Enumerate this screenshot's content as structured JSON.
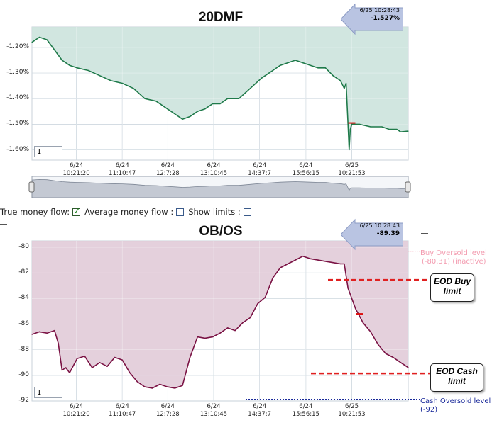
{
  "colors": {
    "top_fill": "#cde4dd",
    "top_line": "#1f7a4a",
    "bottom_fill": "#e2ccd9",
    "bottom_line": "#7a1244",
    "grid": "#aabbc8",
    "eod_line": "#e02020",
    "buy_level": "#f6a0b0",
    "cash_level": "#1a2a9a"
  },
  "top_chart": {
    "title": "20DMF",
    "zoom_value": "1",
    "callout": {
      "time": "6/25 10:28:43",
      "value": "-1.527%"
    }
  },
  "bottom_chart": {
    "title": "OB/OS",
    "zoom_value": "1",
    "callout": {
      "time": "6/25 10:28:43",
      "value": "-89.39"
    },
    "buy_level_label": [
      "Buy Oversold level",
      "(-80.31) (inactive)"
    ],
    "cash_level_label": [
      "Cash Oversold level",
      "(-92)"
    ],
    "annotations": {
      "eod_buy": [
        "EOD Buy",
        "limit"
      ],
      "eod_cash": [
        "EOD Cash",
        "limit"
      ]
    }
  },
  "toggles": {
    "true_money_flow": "True money flow:",
    "average_money_flow": "Average money flow :",
    "show_limits": "Show limits :"
  },
  "chart_data": [
    {
      "type": "area",
      "title": "20DMF",
      "ylim": [
        -1.64,
        -1.12
      ],
      "y_ticks": [
        "-1.20%",
        "-1.30%",
        "-1.40%",
        "-1.50%",
        "-1.60%"
      ],
      "y_tick_values": [
        -1.2,
        -1.3,
        -1.4,
        -1.5,
        -1.6
      ],
      "x_ticks": [
        [
          "6/24",
          "10:21:20"
        ],
        [
          "6/24",
          "11:10:47"
        ],
        [
          "6/24",
          "12:7:28"
        ],
        [
          "6/24",
          "13:10:45"
        ],
        [
          "6/24",
          "14:37:7"
        ],
        [
          "6/24",
          "15:56:15"
        ],
        [
          "6/25",
          "10:21:53"
        ]
      ],
      "x_range": [
        0,
        1
      ],
      "x_tick_positions": [
        0.118,
        0.24,
        0.361,
        0.483,
        0.605,
        0.728,
        0.85
      ],
      "grid": true,
      "series": [
        {
          "values": [
            [
              0.0,
              -1.18
            ],
            [
              0.02,
              -1.16
            ],
            [
              0.04,
              -1.17
            ],
            [
              0.06,
              -1.21
            ],
            [
              0.08,
              -1.25
            ],
            [
              0.1,
              -1.27
            ],
            [
              0.12,
              -1.28
            ],
            [
              0.15,
              -1.29
            ],
            [
              0.18,
              -1.31
            ],
            [
              0.21,
              -1.33
            ],
            [
              0.24,
              -1.34
            ],
            [
              0.27,
              -1.36
            ],
            [
              0.3,
              -1.4
            ],
            [
              0.33,
              -1.41
            ],
            [
              0.36,
              -1.44
            ],
            [
              0.38,
              -1.46
            ],
            [
              0.4,
              -1.48
            ],
            [
              0.42,
              -1.47
            ],
            [
              0.44,
              -1.45
            ],
            [
              0.46,
              -1.44
            ],
            [
              0.48,
              -1.42
            ],
            [
              0.5,
              -1.42
            ],
            [
              0.52,
              -1.4
            ],
            [
              0.55,
              -1.4
            ],
            [
              0.58,
              -1.36
            ],
            [
              0.61,
              -1.32
            ],
            [
              0.64,
              -1.29
            ],
            [
              0.66,
              -1.27
            ],
            [
              0.68,
              -1.26
            ],
            [
              0.7,
              -1.25
            ],
            [
              0.72,
              -1.26
            ],
            [
              0.74,
              -1.27
            ],
            [
              0.76,
              -1.28
            ],
            [
              0.78,
              -1.28
            ],
            [
              0.8,
              -1.31
            ],
            [
              0.82,
              -1.33
            ],
            [
              0.83,
              -1.36
            ],
            [
              0.835,
              -1.34
            ],
            [
              0.84,
              -1.5
            ],
            [
              0.843,
              -1.6
            ],
            [
              0.846,
              -1.52
            ],
            [
              0.85,
              -1.5
            ],
            [
              0.87,
              -1.5
            ],
            [
              0.9,
              -1.51
            ],
            [
              0.93,
              -1.51
            ],
            [
              0.95,
              -1.52
            ],
            [
              0.97,
              -1.52
            ],
            [
              0.98,
              -1.53
            ],
            [
              1.0,
              -1.527
            ]
          ]
        }
      ],
      "marker": [
        0.85,
        -1.495
      ]
    },
    {
      "type": "area",
      "title": "OB/OS",
      "ylim": [
        -92,
        -79.5
      ],
      "y_ticks": [
        "-80",
        "-82",
        "-84",
        "-86",
        "-88",
        "-90",
        "-92"
      ],
      "y_tick_values": [
        -80,
        -82,
        -84,
        -86,
        -88,
        -90,
        -92
      ],
      "x_ticks": [
        [
          "6/24",
          "10:21:20"
        ],
        [
          "6/24",
          "11:10:47"
        ],
        [
          "6/24",
          "12:7:28"
        ],
        [
          "6/24",
          "13:10:45"
        ],
        [
          "6/24",
          "14:37:7"
        ],
        [
          "6/24",
          "15:56:15"
        ],
        [
          "6/25",
          "10:21:53"
        ]
      ],
      "x_range": [
        0,
        1
      ],
      "x_tick_positions": [
        0.118,
        0.24,
        0.361,
        0.483,
        0.605,
        0.728,
        0.85
      ],
      "grid": true,
      "series": [
        {
          "values": [
            [
              0.0,
              -86.8
            ],
            [
              0.02,
              -86.6
            ],
            [
              0.04,
              -86.7
            ],
            [
              0.06,
              -86.5
            ],
            [
              0.07,
              -87.5
            ],
            [
              0.08,
              -89.6
            ],
            [
              0.09,
              -89.4
            ],
            [
              0.1,
              -89.8
            ],
            [
              0.12,
              -88.7
            ],
            [
              0.14,
              -88.5
            ],
            [
              0.16,
              -89.4
            ],
            [
              0.18,
              -89.0
            ],
            [
              0.2,
              -89.3
            ],
            [
              0.22,
              -88.6
            ],
            [
              0.24,
              -88.8
            ],
            [
              0.26,
              -89.8
            ],
            [
              0.28,
              -90.5
            ],
            [
              0.3,
              -90.9
            ],
            [
              0.32,
              -91.0
            ],
            [
              0.34,
              -90.7
            ],
            [
              0.36,
              -90.9
            ],
            [
              0.38,
              -91.0
            ],
            [
              0.4,
              -90.8
            ],
            [
              0.42,
              -88.6
            ],
            [
              0.44,
              -87.0
            ],
            [
              0.46,
              -87.1
            ],
            [
              0.48,
              -87.0
            ],
            [
              0.5,
              -86.7
            ],
            [
              0.52,
              -86.3
            ],
            [
              0.54,
              -86.5
            ],
            [
              0.56,
              -85.9
            ],
            [
              0.58,
              -85.5
            ],
            [
              0.6,
              -84.4
            ],
            [
              0.62,
              -83.9
            ],
            [
              0.64,
              -82.4
            ],
            [
              0.66,
              -81.6
            ],
            [
              0.68,
              -81.3
            ],
            [
              0.7,
              -81.0
            ],
            [
              0.72,
              -80.7
            ],
            [
              0.74,
              -80.9
            ],
            [
              0.76,
              -81.0
            ],
            [
              0.78,
              -81.1
            ],
            [
              0.8,
              -81.2
            ],
            [
              0.82,
              -81.3
            ],
            [
              0.83,
              -81.3
            ],
            [
              0.84,
              -83.2
            ],
            [
              0.86,
              -84.8
            ],
            [
              0.88,
              -85.9
            ],
            [
              0.9,
              -86.6
            ],
            [
              0.92,
              -87.6
            ],
            [
              0.94,
              -88.3
            ],
            [
              0.96,
              -88.6
            ],
            [
              0.98,
              -89.0
            ],
            [
              1.0,
              -89.39
            ]
          ]
        }
      ],
      "marker": [
        0.87,
        -85.2
      ],
      "levels": {
        "buy_oversold": -80.31,
        "cash_oversold": -92
      },
      "eod_buy_limit": -82.55,
      "eod_cash_limit": -89.85
    }
  ]
}
